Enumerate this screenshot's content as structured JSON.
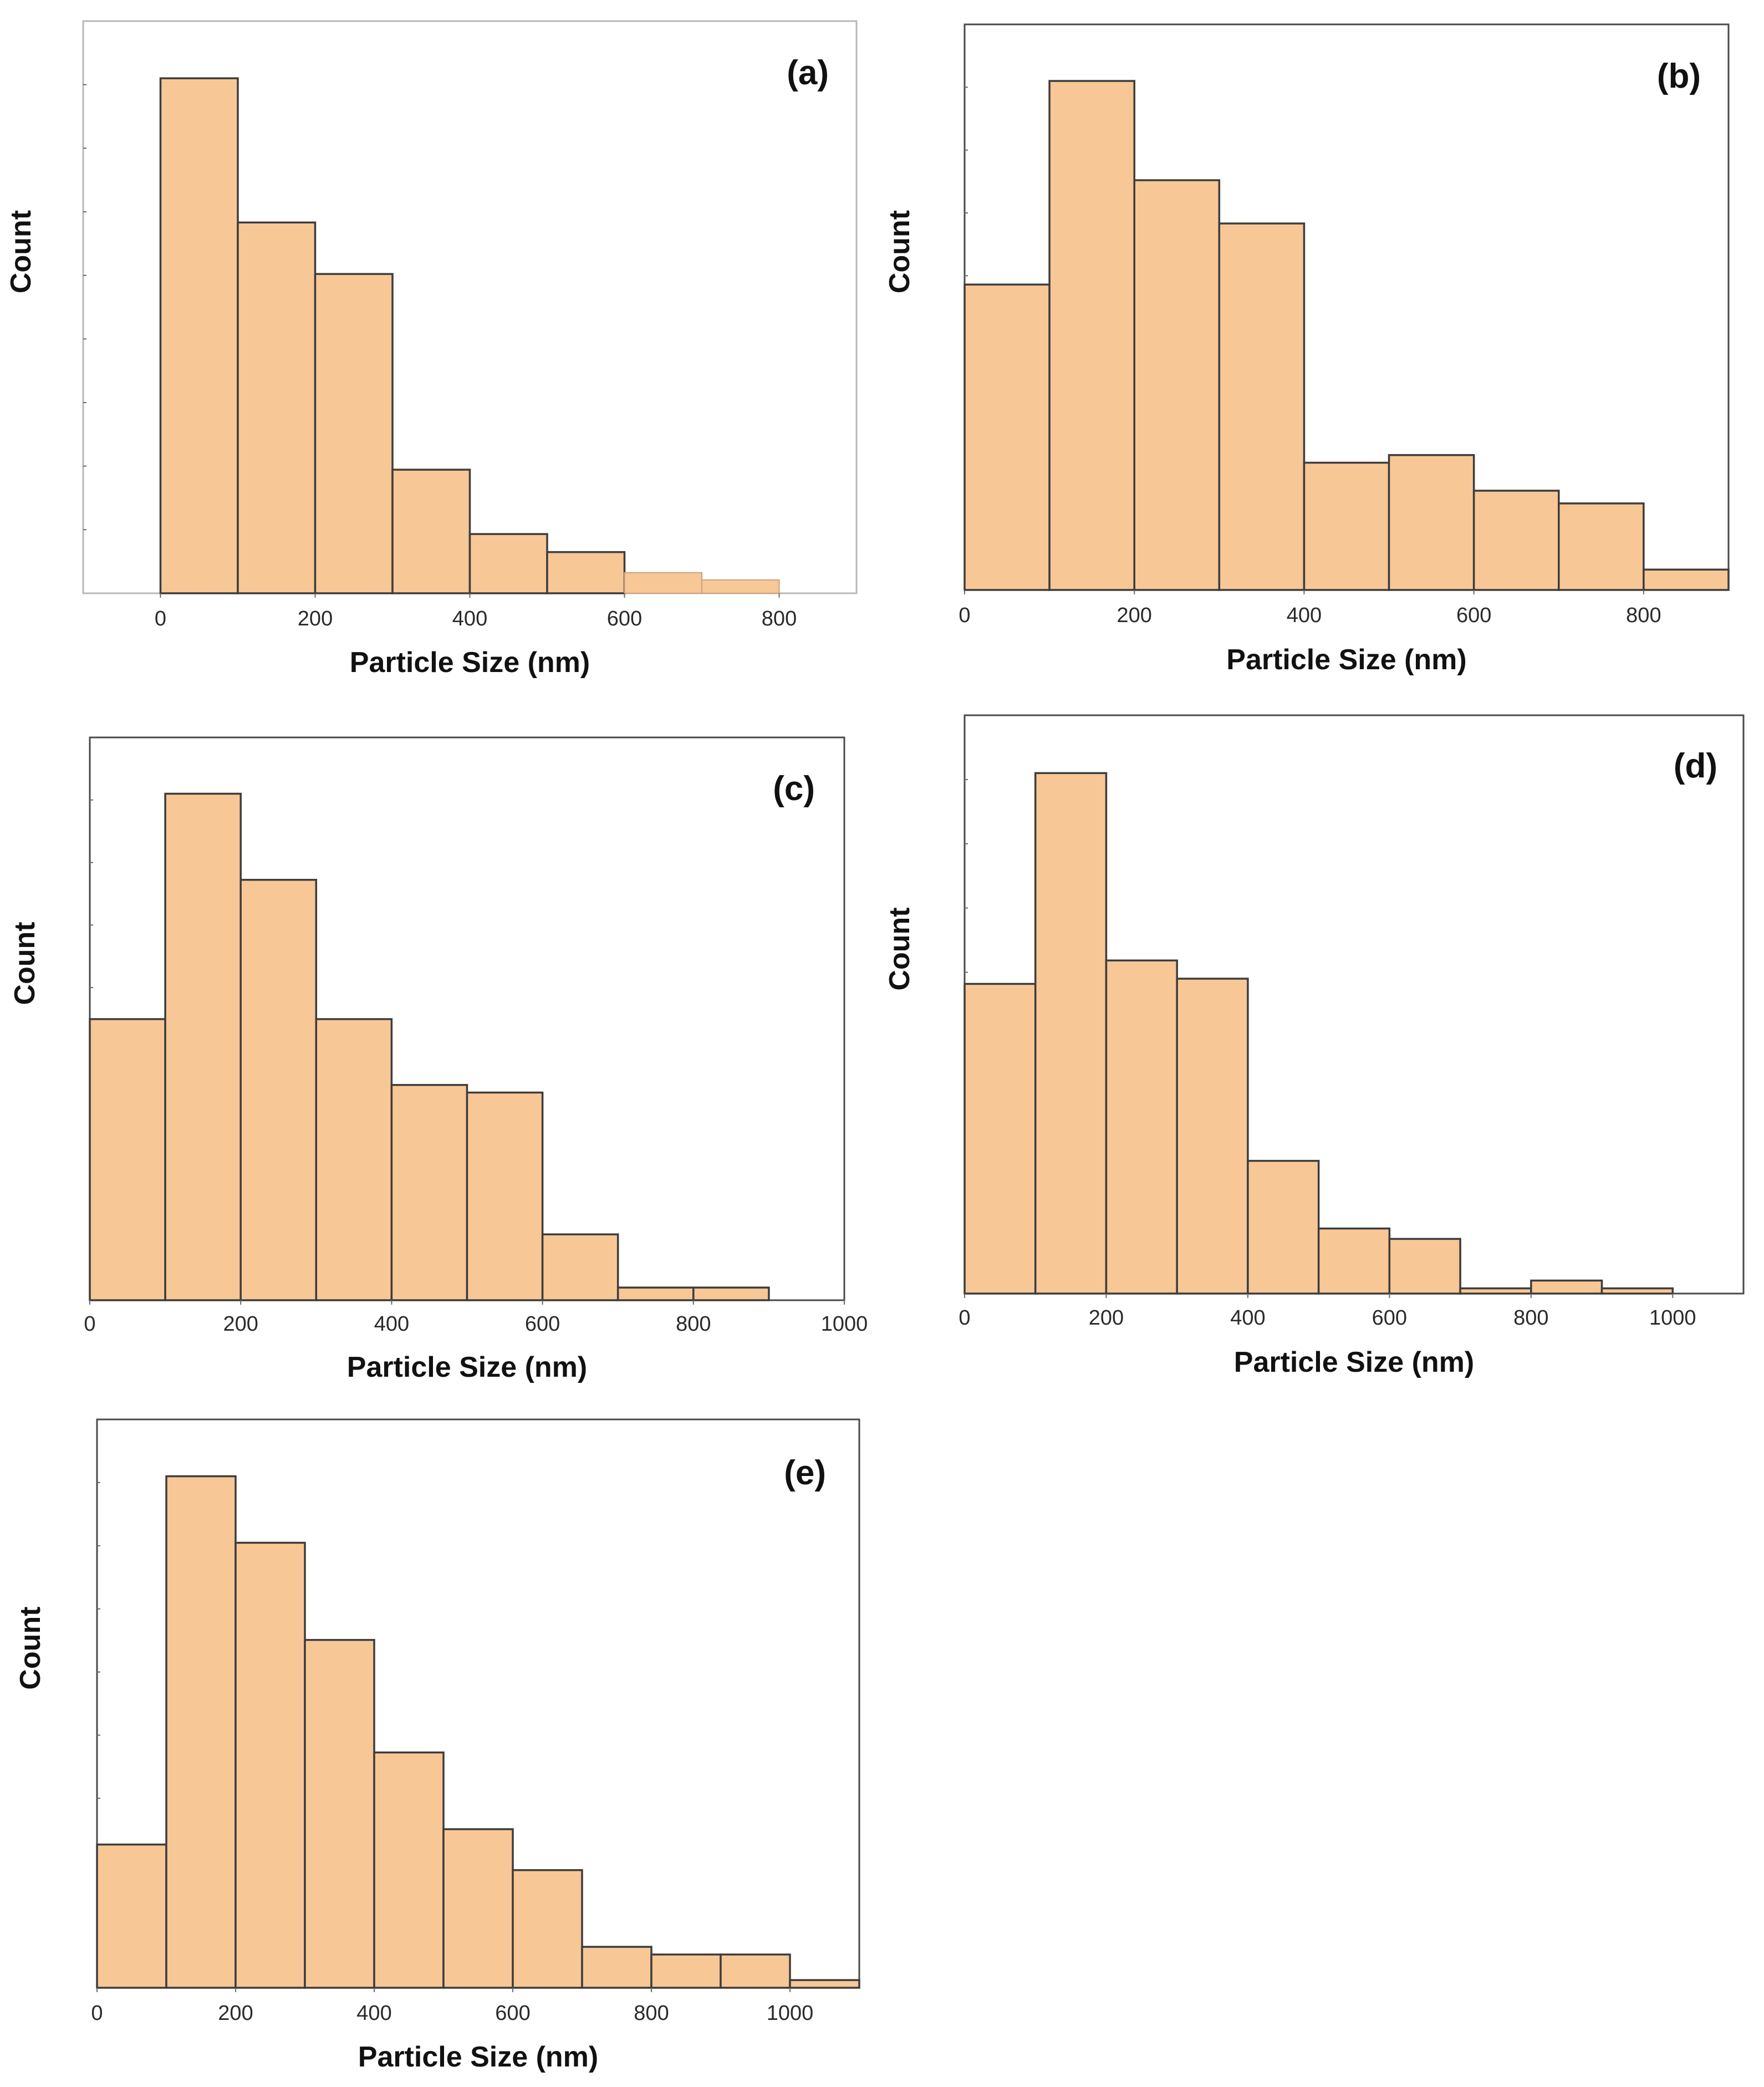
{
  "chart_data": [
    {
      "panel": "(a)",
      "type": "bar",
      "xlabel": "Particle Size (nm)",
      "ylabel": "Count",
      "xlim": [
        -100,
        900
      ],
      "ylim": [
        0,
        100
      ],
      "xticks": [
        "0",
        "200",
        "400",
        "600",
        "800"
      ],
      "bins": [
        [
          0,
          100
        ],
        [
          100,
          200
        ],
        [
          200,
          300
        ],
        [
          300,
          400
        ],
        [
          400,
          500
        ],
        [
          500,
          600
        ],
        [
          600,
          700
        ],
        [
          700,
          800
        ]
      ],
      "values": [
        100,
        72,
        62,
        24,
        11.5,
        8,
        4,
        2.6
      ],
      "frame": "light"
    },
    {
      "panel": "(b)",
      "type": "bar",
      "xlabel": "Particle Size (nm)",
      "ylabel": "Count",
      "xlim": [
        0,
        900
      ],
      "ylim": [
        0,
        100
      ],
      "xticks": [
        "0",
        "200",
        "400",
        "600",
        "800"
      ],
      "bins": [
        [
          0,
          100
        ],
        [
          100,
          200
        ],
        [
          200,
          300
        ],
        [
          300,
          400
        ],
        [
          400,
          500
        ],
        [
          500,
          600
        ],
        [
          600,
          700
        ],
        [
          700,
          800
        ],
        [
          800,
          900
        ]
      ],
      "values": [
        60,
        100,
        80.5,
        72,
        25,
        26.5,
        19.5,
        17,
        4
      ],
      "frame": "dark"
    },
    {
      "panel": "(c)",
      "type": "bar",
      "xlabel": "Particle Size (nm)",
      "ylabel": "Count",
      "xlim": [
        0,
        1000
      ],
      "ylim": [
        0,
        100
      ],
      "xticks": [
        "0",
        "200",
        "400",
        "600",
        "800",
        "1000"
      ],
      "bins": [
        [
          0,
          100
        ],
        [
          100,
          200
        ],
        [
          200,
          300
        ],
        [
          300,
          400
        ],
        [
          400,
          500
        ],
        [
          500,
          600
        ],
        [
          600,
          700
        ],
        [
          700,
          800
        ],
        [
          800,
          900
        ]
      ],
      "values": [
        55.5,
        100,
        83,
        55.5,
        42.5,
        41,
        13,
        2.5,
        2.5
      ],
      "frame": "dark"
    },
    {
      "panel": "(d)",
      "type": "bar",
      "xlabel": "Particle Size (nm)",
      "ylabel": "Count",
      "xlim": [
        0,
        1100
      ],
      "ylim": [
        0,
        100
      ],
      "xticks": [
        "0",
        "200",
        "400",
        "600",
        "800",
        "1000"
      ],
      "bins": [
        [
          0,
          100
        ],
        [
          100,
          200
        ],
        [
          200,
          300
        ],
        [
          300,
          400
        ],
        [
          400,
          500
        ],
        [
          500,
          600
        ],
        [
          600,
          700
        ],
        [
          700,
          800
        ],
        [
          800,
          900
        ],
        [
          900,
          1000
        ]
      ],
      "values": [
        59.5,
        100,
        64,
        60.5,
        25.5,
        12.5,
        10.5,
        1,
        2.5,
        1
      ],
      "frame": "dark"
    },
    {
      "panel": "(e)",
      "type": "bar",
      "xlabel": "Particle Size (nm)",
      "ylabel": "Count",
      "xlim": [
        0,
        1100
      ],
      "ylim": [
        0,
        100
      ],
      "xticks": [
        "0",
        "200",
        "400",
        "600",
        "800",
        "1000"
      ],
      "bins": [
        [
          0,
          100
        ],
        [
          100,
          200
        ],
        [
          200,
          300
        ],
        [
          300,
          400
        ],
        [
          400,
          500
        ],
        [
          500,
          600
        ],
        [
          600,
          700
        ],
        [
          700,
          800
        ],
        [
          800,
          900
        ],
        [
          900,
          1000
        ],
        [
          1000,
          1100
        ]
      ],
      "values": [
        28,
        100,
        87,
        68,
        46,
        31,
        23,
        8,
        6.5,
        6.5,
        1.5
      ],
      "frame": "dark"
    }
  ]
}
